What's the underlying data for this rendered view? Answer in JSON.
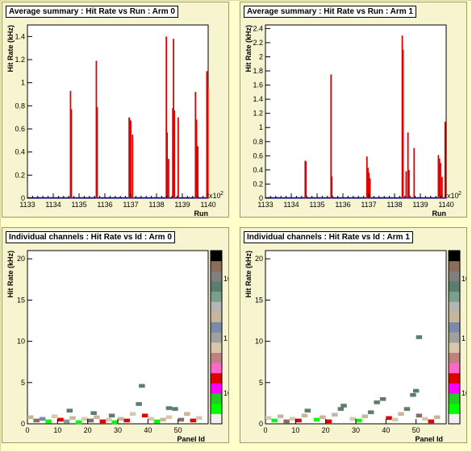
{
  "colors": {
    "background": "#ffffcc",
    "pad": "#f7f5cf",
    "bar": "#e00000",
    "axis": "#000000",
    "baseline": "#0000cc"
  },
  "pads": [
    {
      "id": "arm0-run",
      "title": "Average summary : Hit Rate vs Run : Arm 0",
      "ylabel": "Hit Rate (kHz)",
      "xlabel": "Run",
      "multiplier": "x10",
      "multiplier_exp": "2",
      "xticks": [
        "1133",
        "1134",
        "1135",
        "1136",
        "1137",
        "1138",
        "1139",
        "1140"
      ],
      "yticks": [
        "0",
        "0.2",
        "0.4",
        "0.6",
        "0.8",
        "1",
        "1.2",
        "1.4"
      ]
    },
    {
      "id": "arm1-run",
      "title": "Average summary : Hit Rate vs Run : Arm 1",
      "ylabel": "Hit Rate (kHz)",
      "xlabel": "Run",
      "multiplier": "x10",
      "multiplier_exp": "2",
      "xticks": [
        "1133",
        "1134",
        "1135",
        "1136",
        "1137",
        "1138",
        "1139",
        "1140"
      ],
      "yticks": [
        "0",
        "0.2",
        "0.4",
        "0.6",
        "0.8",
        "1",
        "1.2",
        "1.4",
        "1.6",
        "1.8",
        "2",
        "2.2",
        "2.4"
      ]
    },
    {
      "id": "arm0-panel",
      "title": "Individual channels : Hit Rate vs Id : Arm 0",
      "ylabel": "Hit Rate (kHz)",
      "xlabel": "Panel Id",
      "xticks": [
        "0",
        "10",
        "20",
        "30",
        "40",
        "50"
      ],
      "yticks": [
        "0",
        "5",
        "10",
        "15",
        "20"
      ],
      "zticks": [
        "10",
        "1",
        "10"
      ]
    },
    {
      "id": "arm1-panel",
      "title": "Individual channels : Hit Rate vs Id : Arm 1",
      "ylabel": "Hit Rate (kHz)",
      "xlabel": "Panel Id",
      "xticks": [
        "0",
        "10",
        "20",
        "30",
        "40",
        "50"
      ],
      "yticks": [
        "0",
        "5",
        "10",
        "15",
        "20"
      ],
      "zticks": [
        "10",
        "1",
        "10"
      ]
    }
  ],
  "chart_data": [
    {
      "type": "bar",
      "title": "Average summary : Hit Rate vs Run : Arm 0",
      "xlabel": "Run",
      "ylabel": "Hit Rate (kHz)",
      "xlim": [
        113300,
        114000
      ],
      "ylim": [
        0,
        1.5
      ],
      "x_multiplier": "x10^2",
      "bars": [
        {
          "x": 113467,
          "y": 0.93
        },
        {
          "x": 113470,
          "y": 0.77
        },
        {
          "x": 113567,
          "y": 1.19
        },
        {
          "x": 113570,
          "y": 0.79
        },
        {
          "x": 113694,
          "y": 0.7
        },
        {
          "x": 113697,
          "y": 0.68
        },
        {
          "x": 113700,
          "y": 0.67
        },
        {
          "x": 113707,
          "y": 0.55
        },
        {
          "x": 113838,
          "y": 1.4
        },
        {
          "x": 113841,
          "y": 0.57
        },
        {
          "x": 113847,
          "y": 0.34
        },
        {
          "x": 113863,
          "y": 0.78
        },
        {
          "x": 113866,
          "y": 1.38
        },
        {
          "x": 113869,
          "y": 0.76
        },
        {
          "x": 113884,
          "y": 0.7
        },
        {
          "x": 113951,
          "y": 0.92
        },
        {
          "x": 113955,
          "y": 0.68
        },
        {
          "x": 113960,
          "y": 0.45
        },
        {
          "x": 113995,
          "y": 1.1
        },
        {
          "x": 113999,
          "y": 0.97
        }
      ],
      "grid": false
    },
    {
      "type": "bar",
      "title": "Average summary : Hit Rate vs Run : Arm 1",
      "xlabel": "Run",
      "ylabel": "Hit Rate (kHz)",
      "xlim": [
        113300,
        114000
      ],
      "ylim": [
        0,
        2.45
      ],
      "x_multiplier": "x10^2",
      "bars": [
        {
          "x": 113454,
          "y": 0.53
        },
        {
          "x": 113457,
          "y": 0.52
        },
        {
          "x": 113554,
          "y": 1.75
        },
        {
          "x": 113557,
          "y": 0.31
        },
        {
          "x": 113693,
          "y": 0.59
        },
        {
          "x": 113697,
          "y": 0.43
        },
        {
          "x": 113701,
          "y": 0.36
        },
        {
          "x": 113705,
          "y": 0.28
        },
        {
          "x": 113830,
          "y": 2.3
        },
        {
          "x": 113833,
          "y": 2.1
        },
        {
          "x": 113845,
          "y": 0.38
        },
        {
          "x": 113852,
          "y": 0.93
        },
        {
          "x": 113856,
          "y": 0.4
        },
        {
          "x": 113876,
          "y": 0.71
        },
        {
          "x": 113970,
          "y": 0.61
        },
        {
          "x": 113974,
          "y": 0.56
        },
        {
          "x": 113978,
          "y": 0.5
        },
        {
          "x": 113984,
          "y": 0.3
        },
        {
          "x": 113996,
          "y": 1.08
        }
      ],
      "grid": false
    },
    {
      "type": "heatmap",
      "title": "Individual channels : Hit Rate vs Id : Arm 0",
      "xlabel": "Panel Id",
      "ylabel": "Hit Rate (kHz)",
      "xlim": [
        0,
        60
      ],
      "ylim": [
        0,
        21
      ],
      "z_axis": "log",
      "cells": [
        {
          "x": 1,
          "y": 0.8,
          "z": 2
        },
        {
          "x": 3,
          "y": 0.4,
          "z": 6
        },
        {
          "x": 5,
          "y": 0.6,
          "z": 8
        },
        {
          "x": 7,
          "y": 0.3,
          "z": 5
        },
        {
          "x": 9,
          "y": 0.9,
          "z": 3
        },
        {
          "x": 11,
          "y": 0.5,
          "z": 4
        },
        {
          "x": 13,
          "y": 0.3,
          "z": 7
        },
        {
          "x": 15,
          "y": 0.7,
          "z": 2
        },
        {
          "x": 17,
          "y": 0.2,
          "z": 5
        },
        {
          "x": 19,
          "y": 0.6,
          "z": 3
        },
        {
          "x": 21,
          "y": 0.4,
          "z": 6
        },
        {
          "x": 23,
          "y": 0.8,
          "z": 2
        },
        {
          "x": 25,
          "y": 0.3,
          "z": 4
        },
        {
          "x": 27,
          "y": 0.5,
          "z": 3
        },
        {
          "x": 29,
          "y": 0.2,
          "z": 5
        },
        {
          "x": 31,
          "y": 0.6,
          "z": 2
        },
        {
          "x": 33,
          "y": 0.4,
          "z": 4
        },
        {
          "x": 35,
          "y": 1.2,
          "z": 3
        },
        {
          "x": 37,
          "y": 2.4,
          "z": 1
        },
        {
          "x": 38,
          "y": 4.6,
          "z": 1
        },
        {
          "x": 39,
          "y": 1.0,
          "z": 4
        },
        {
          "x": 41,
          "y": 0.6,
          "z": 3
        },
        {
          "x": 43,
          "y": 0.3,
          "z": 5
        },
        {
          "x": 45,
          "y": 0.5,
          "z": 2
        },
        {
          "x": 47,
          "y": 0.8,
          "z": 3
        },
        {
          "x": 49,
          "y": 1.8,
          "z": 1
        },
        {
          "x": 51,
          "y": 0.5,
          "z": 6
        },
        {
          "x": 53,
          "y": 1.2,
          "z": 2
        },
        {
          "x": 55,
          "y": 0.4,
          "z": 4
        },
        {
          "x": 57,
          "y": 0.7,
          "z": 3
        },
        {
          "x": 14,
          "y": 1.6,
          "z": 1
        },
        {
          "x": 22,
          "y": 1.3,
          "z": 1
        },
        {
          "x": 28,
          "y": 1.0,
          "z": 1
        },
        {
          "x": 47,
          "y": 1.9,
          "z": 1
        }
      ]
    },
    {
      "type": "heatmap",
      "title": "Individual channels : Hit Rate vs Id : Arm 1",
      "xlabel": "Panel Id",
      "ylabel": "Hit Rate (kHz)",
      "xlim": [
        0,
        60
      ],
      "ylim": [
        0,
        21
      ],
      "z_axis": "log",
      "cells": [
        {
          "x": 1,
          "y": 0.7,
          "z": 3
        },
        {
          "x": 3,
          "y": 0.4,
          "z": 5
        },
        {
          "x": 5,
          "y": 0.9,
          "z": 2
        },
        {
          "x": 7,
          "y": 0.3,
          "z": 6
        },
        {
          "x": 9,
          "y": 0.6,
          "z": 3
        },
        {
          "x": 11,
          "y": 0.4,
          "z": 4
        },
        {
          "x": 13,
          "y": 1.0,
          "z": 2
        },
        {
          "x": 14,
          "y": 1.6,
          "z": 1
        },
        {
          "x": 17,
          "y": 0.5,
          "z": 5
        },
        {
          "x": 19,
          "y": 0.8,
          "z": 2
        },
        {
          "x": 21,
          "y": 0.3,
          "z": 4
        },
        {
          "x": 23,
          "y": 1.1,
          "z": 2
        },
        {
          "x": 25,
          "y": 1.8,
          "z": 1
        },
        {
          "x": 26,
          "y": 2.2,
          "z": 1
        },
        {
          "x": 29,
          "y": 0.6,
          "z": 3
        },
        {
          "x": 31,
          "y": 0.4,
          "z": 5
        },
        {
          "x": 33,
          "y": 0.9,
          "z": 2
        },
        {
          "x": 35,
          "y": 1.4,
          "z": 1
        },
        {
          "x": 37,
          "y": 2.6,
          "z": 1
        },
        {
          "x": 39,
          "y": 3.0,
          "z": 1
        },
        {
          "x": 41,
          "y": 0.7,
          "z": 4
        },
        {
          "x": 43,
          "y": 0.5,
          "z": 3
        },
        {
          "x": 45,
          "y": 1.2,
          "z": 2
        },
        {
          "x": 47,
          "y": 1.8,
          "z": 1
        },
        {
          "x": 49,
          "y": 3.5,
          "z": 1
        },
        {
          "x": 50,
          "y": 4.0,
          "z": 1
        },
        {
          "x": 51,
          "y": 1.0,
          "z": 6
        },
        {
          "x": 53,
          "y": 0.6,
          "z": 3
        },
        {
          "x": 55,
          "y": 0.3,
          "z": 4
        },
        {
          "x": 57,
          "y": 0.8,
          "z": 2
        },
        {
          "x": 51,
          "y": 10.5,
          "z": 1
        }
      ]
    }
  ]
}
